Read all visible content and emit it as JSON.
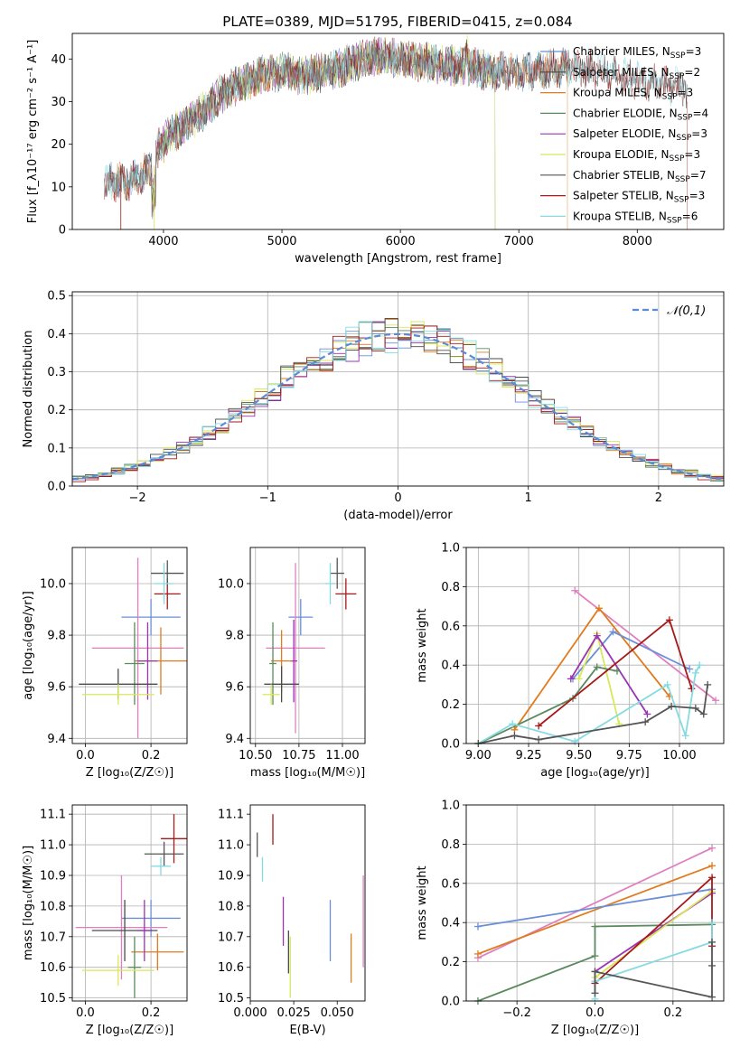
{
  "figure_title": "PLATE=0389, MJD=51795, FIBERID=0415, z=0.084",
  "colors": {
    "Chabrier MILES": "#6b8fd6",
    "Salpeter MILES": "#4a4a4a",
    "Kroupa MILES": "#e07b1f",
    "Chabrier ELODIE": "#5a8a5f",
    "Salpeter ELODIE": "#9b33b5",
    "Kroupa ELODIE": "#d8e85a",
    "Chabrier STELIB": "#555555",
    "Salpeter STELIB": "#a61a1a",
    "Kroupa STELIB": "#86dbe0",
    "extra_pink": "#e07fbf",
    "normal_curve": "#5b8bd4"
  },
  "chart_data": [
    {
      "id": "spectrum",
      "type": "line",
      "xlabel": "wavelength [Angstrom, rest frame]",
      "ylabel": "Flux [f_λ10⁻¹⁷ erg cm⁻² s⁻¹ A⁻¹]",
      "xlim": [
        3230,
        8730
      ],
      "ylim": [
        0,
        46
      ],
      "xticks": [
        4000,
        5000,
        6000,
        7000,
        8000
      ],
      "yticks": [
        0,
        10,
        20,
        30,
        40
      ],
      "grid": false,
      "legend_position": "top-right",
      "series": [
        {
          "name": "Chabrier MILES, N_SSP=3",
          "x_range": [
            3540,
            7410
          ]
        },
        {
          "name": "Salpeter MILES, N_SSP=2",
          "x_range": [
            3540,
            7410
          ]
        },
        {
          "name": "Kroupa MILES, N_SSP=3",
          "x_range": [
            3540,
            7410
          ]
        },
        {
          "name": "Chabrier ELODIE, N_SSP=4",
          "x_range": [
            3900,
            6800
          ]
        },
        {
          "name": "Salpeter ELODIE, N_SSP=3",
          "x_range": [
            3900,
            6800
          ]
        },
        {
          "name": "Kroupa ELODIE, N_SSP=3",
          "x_range": [
            3900,
            6800
          ]
        },
        {
          "name": "Chabrier STELIB, N_SSP=7",
          "x_range": [
            3500,
            8420
          ]
        },
        {
          "name": "Salpeter STELIB, N_SSP=3",
          "x_range": [
            3500,
            8420
          ]
        },
        {
          "name": "Kroupa STELIB, N_SSP=6",
          "x_range": [
            3500,
            8420
          ]
        }
      ],
      "continuum": {
        "x": [
          3500,
          3700,
          3900,
          3950,
          4050,
          4300,
          4500,
          4800,
          5000,
          5200,
          5500,
          5800,
          6000,
          6300,
          6600,
          6800,
          7000,
          7400,
          7700,
          8000,
          8420
        ],
        "y": [
          11,
          11,
          14,
          19,
          22,
          27,
          32,
          36,
          37,
          36,
          38,
          41,
          40,
          39,
          38,
          37,
          37,
          38,
          37,
          35,
          33
        ]
      }
    },
    {
      "id": "residuals",
      "type": "histogram",
      "xlabel": "(data-model)/error",
      "ylabel": "Normed distribution",
      "xlim": [
        -2.5,
        2.5
      ],
      "ylim": [
        0,
        0.51
      ],
      "xticks": [
        -2,
        -1,
        0,
        1,
        2
      ],
      "yticks": [
        0.0,
        0.1,
        0.2,
        0.3,
        0.4,
        0.5
      ],
      "grid": true,
      "legend_position": "top-right",
      "legend": "𝒩(0,1)",
      "bin_width": 0.1
    },
    {
      "id": "age_vs_Z",
      "type": "errorbar",
      "xlabel": "Z [log₁₀(Z/Z☉)]",
      "ylabel": "age  [log₁₀(age/yr)]",
      "xlim": [
        -0.04,
        0.31
      ],
      "ylim": [
        9.38,
        10.14
      ],
      "xticks": [
        0.0,
        0.2
      ],
      "yticks": [
        9.4,
        9.6,
        9.8,
        10.0
      ],
      "grid": true,
      "points": [
        {
          "s": "Salpeter STELIB",
          "x": 0.25,
          "y": 9.96,
          "xe": 0.04,
          "ye": 0.06
        },
        {
          "s": "Chabrier STELIB",
          "x": 0.25,
          "y": 10.04,
          "xe": 0.05,
          "ye": 0.05
        },
        {
          "s": "Kroupa STELIB",
          "x": 0.24,
          "y": 10.0,
          "xe": 0.03,
          "ye": 0.08
        },
        {
          "s": "Chabrier MILES",
          "x": 0.2,
          "y": 9.87,
          "xe": 0.09,
          "ye": 0.07
        },
        {
          "s": "extra_pink",
          "x": 0.16,
          "y": 9.75,
          "xe": 0.14,
          "ye": 0.35
        },
        {
          "s": "Kroupa MILES",
          "x": 0.23,
          "y": 9.7,
          "xe": 0.08,
          "ye": 0.13
        },
        {
          "s": "Salpeter ELODIE",
          "x": 0.19,
          "y": 9.7,
          "xe": 0.03,
          "ye": 0.15
        },
        {
          "s": "Chabrier ELODIE",
          "x": 0.15,
          "y": 9.69,
          "xe": 0.03,
          "ye": 0.16
        },
        {
          "s": "Salpeter MILES",
          "x": 0.1,
          "y": 9.61,
          "xe": 0.12,
          "ye": 0.06
        },
        {
          "s": "Kroupa ELODIE",
          "x": 0.1,
          "y": 9.57,
          "xe": 0.11,
          "ye": 0.04
        }
      ]
    },
    {
      "id": "age_vs_mass",
      "type": "errorbar",
      "xlabel": "mass [log₁₀(M/M☉)]",
      "ylabel": "",
      "xlim": [
        10.47,
        11.13
      ],
      "ylim": [
        9.38,
        10.14
      ],
      "xticks": [
        10.5,
        10.75,
        11.0
      ],
      "yticks": [
        9.4,
        9.6,
        9.8,
        10.0
      ],
      "grid": true,
      "points": [
        {
          "s": "Salpeter STELIB",
          "x": 11.02,
          "y": 9.96,
          "xe": 0.06,
          "ye": 0.06
        },
        {
          "s": "Chabrier STELIB",
          "x": 10.97,
          "y": 10.04,
          "xe": 0.04,
          "ye": 0.06
        },
        {
          "s": "Kroupa STELIB",
          "x": 10.93,
          "y": 10.0,
          "xe": 0.03,
          "ye": 0.08
        },
        {
          "s": "Chabrier MILES",
          "x": 10.76,
          "y": 9.87,
          "xe": 0.07,
          "ye": 0.07
        },
        {
          "s": "extra_pink",
          "x": 10.73,
          "y": 9.75,
          "xe": 0.17,
          "ye": 0.33
        },
        {
          "s": "Salpeter ELODIE",
          "x": 10.72,
          "y": 9.7,
          "xe": 0.02,
          "ye": 0.16
        },
        {
          "s": "Kroupa MILES",
          "x": 10.65,
          "y": 9.7,
          "xe": 0.06,
          "ye": 0.12
        },
        {
          "s": "Chabrier ELODIE",
          "x": 10.6,
          "y": 9.69,
          "xe": 0.02,
          "ye": 0.16
        },
        {
          "s": "Salpeter MILES",
          "x": 10.65,
          "y": 9.61,
          "xe": 0.1,
          "ye": 0.07
        },
        {
          "s": "Kroupa ELODIE",
          "x": 10.59,
          "y": 9.57,
          "xe": 0.05,
          "ye": 0.04
        }
      ]
    },
    {
      "id": "weight_vs_age",
      "type": "line",
      "xlabel": "age  [log₁₀(age/yr)]",
      "ylabel": "mass weight",
      "xlim": [
        8.94,
        10.22
      ],
      "ylim": [
        0,
        1
      ],
      "xticks": [
        9.0,
        9.25,
        9.5,
        9.75,
        10.0
      ],
      "yticks": [
        0.0,
        0.2,
        0.4,
        0.6,
        0.8,
        1.0
      ],
      "grid": true,
      "series": [
        {
          "s": "extra_pink",
          "x": [
            9.48,
            10.18
          ],
          "y": [
            0.78,
            0.22
          ]
        },
        {
          "s": "Kroupa MILES",
          "x": [
            9.18,
            9.6,
            9.95
          ],
          "y": [
            0.07,
            0.69,
            0.24
          ]
        },
        {
          "s": "Chabrier MILES",
          "x": [
            9.47,
            9.67,
            10.05
          ],
          "y": [
            0.33,
            0.57,
            0.38
          ]
        },
        {
          "s": "Kroupa ELODIE",
          "x": [
            9.5,
            9.59,
            9.7
          ],
          "y": [
            0.33,
            0.56,
            0.1
          ]
        },
        {
          "s": "Salpeter ELODIE",
          "x": [
            9.46,
            9.59,
            9.84
          ],
          "y": [
            0.33,
            0.55,
            0.15
          ]
        },
        {
          "s": "Chabrier ELODIE",
          "x": [
            9.0,
            9.47,
            9.59,
            9.69
          ],
          "y": [
            0.0,
            0.23,
            0.39,
            0.37
          ]
        },
        {
          "s": "Salpeter STELIB",
          "x": [
            9.3,
            9.95,
            10.06
          ],
          "y": [
            0.09,
            0.63,
            0.28
          ]
        },
        {
          "s": "Kroupa STELIB",
          "x": [
            9.0,
            9.17,
            9.48,
            9.94,
            10.03,
            10.08,
            10.1
          ],
          "y": [
            0.0,
            0.1,
            0.01,
            0.3,
            0.04,
            0.36,
            0.4
          ]
        },
        {
          "s": "Chabrier STELIB",
          "x": [
            9.0,
            9.18,
            9.3,
            9.83,
            9.96,
            10.08,
            10.12,
            10.14
          ],
          "y": [
            0.0,
            0.04,
            0.02,
            0.11,
            0.19,
            0.18,
            0.15,
            0.3
          ]
        }
      ]
    },
    {
      "id": "mass_vs_Z",
      "type": "errorbar",
      "xlabel": "Z [log₁₀(Z/Z☉)]",
      "ylabel": "mass [log₁₀(M/M☉)]",
      "xlim": [
        -0.04,
        0.31
      ],
      "ylim": [
        10.49,
        11.13
      ],
      "xticks": [
        0.0,
        0.2
      ],
      "yticks": [
        10.5,
        10.6,
        10.7,
        10.8,
        10.9,
        11.0,
        11.1
      ],
      "grid": true,
      "points": [
        {
          "s": "Salpeter STELIB",
          "x": 0.27,
          "y": 11.02,
          "xe": 0.04,
          "ye": 0.08
        },
        {
          "s": "Chabrier STELIB",
          "x": 0.24,
          "y": 10.97,
          "xe": 0.06,
          "ye": 0.04
        },
        {
          "s": "Kroupa STELIB",
          "x": 0.23,
          "y": 10.93,
          "xe": 0.03,
          "ye": 0.03
        },
        {
          "s": "Chabrier MILES",
          "x": 0.2,
          "y": 10.76,
          "xe": 0.09,
          "ye": 0.06
        },
        {
          "s": "extra_pink",
          "x": 0.11,
          "y": 10.73,
          "xe": 0.14,
          "ye": 0.17
        },
        {
          "s": "Salpeter MILES",
          "x": 0.12,
          "y": 10.72,
          "xe": 0.1,
          "ye": 0.1
        },
        {
          "s": "Kroupa MILES",
          "x": 0.22,
          "y": 10.65,
          "xe": 0.08,
          "ye": 0.06
        },
        {
          "s": "Salpeter ELODIE",
          "x": 0.18,
          "y": 10.72,
          "xe": 0.02,
          "ye": 0.1
        },
        {
          "s": "Chabrier ELODIE",
          "x": 0.15,
          "y": 10.6,
          "xe": 0.02,
          "ye": 0.1
        },
        {
          "s": "Kroupa ELODIE",
          "x": 0.1,
          "y": 10.59,
          "xe": 0.11,
          "ye": 0.05
        }
      ]
    },
    {
      "id": "mass_vs_ebv",
      "type": "errorbar",
      "xlabel": "E(B-V)",
      "ylabel": "",
      "xlim": [
        0.0,
        0.066
      ],
      "ylim": [
        10.49,
        11.13
      ],
      "xticks": [
        0.0,
        0.025,
        0.05
      ],
      "xtick_labels": [
        "0.000",
        "0.025",
        "0.050"
      ],
      "yticks": [
        10.5,
        10.6,
        10.7,
        10.8,
        10.9,
        11.0,
        11.1
      ],
      "grid": false,
      "points": [
        {
          "s": "Salpeter STELIB",
          "x": 0.013,
          "y": 11.05,
          "xe": 0,
          "ye": 0.05
        },
        {
          "s": "Chabrier STELIB",
          "x": 0.004,
          "y": 11.0,
          "xe": 0,
          "ye": 0.04
        },
        {
          "s": "Kroupa STELIB",
          "x": 0.007,
          "y": 10.92,
          "xe": 0,
          "ye": 0.04
        },
        {
          "s": "Chabrier MILES",
          "x": 0.046,
          "y": 10.72,
          "xe": 0,
          "ye": 0.1
        },
        {
          "s": "extra_pink",
          "x": 0.065,
          "y": 10.75,
          "xe": 0,
          "ye": 0.15
        },
        {
          "s": "Salpeter ELODIE",
          "x": 0.019,
          "y": 10.75,
          "xe": 0,
          "ye": 0.08
        },
        {
          "s": "Salpeter MILES",
          "x": 0.022,
          "y": 10.65,
          "xe": 0,
          "ye": 0.07
        },
        {
          "s": "Kroupa MILES",
          "x": 0.058,
          "y": 10.63,
          "xe": 0,
          "ye": 0.08
        },
        {
          "s": "Kroupa ELODIE",
          "x": 0.023,
          "y": 10.6,
          "xe": 0,
          "ye": 0.1
        }
      ]
    },
    {
      "id": "weight_vs_Z",
      "type": "line",
      "xlabel": "Z [log₁₀(Z/Z☉)]",
      "ylabel": "mass weight",
      "xlim": [
        -0.33,
        0.33
      ],
      "ylim": [
        0,
        1
      ],
      "xticks": [
        -0.2,
        0.0,
        0.2
      ],
      "yticks": [
        0.0,
        0.2,
        0.4,
        0.6,
        0.8,
        1.0
      ],
      "grid": true,
      "series": [
        {
          "s": "extra_pink",
          "x": [
            -0.3,
            0.3
          ],
          "y": [
            0.22,
            0.78
          ]
        },
        {
          "s": "Kroupa MILES",
          "x": [
            -0.3,
            0.3
          ],
          "y": [
            0.24,
            0.69
          ]
        },
        {
          "s": "Chabrier MILES",
          "x": [
            -0.3,
            0.3
          ],
          "y": [
            0.38,
            0.57
          ]
        },
        {
          "s": "Chabrier ELODIE",
          "x": [
            -0.3,
            0.0,
            0.0,
            0.3
          ],
          "y": [
            0.0,
            0.23,
            0.38,
            0.39
          ]
        },
        {
          "s": "Salpeter ELODIE",
          "x": [
            0.0,
            0.3
          ],
          "y": [
            0.15,
            0.55
          ]
        },
        {
          "s": "Kroupa ELODIE",
          "x": [
            0.0,
            0.3
          ],
          "y": [
            0.12,
            0.56
          ]
        },
        {
          "s": "Salpeter STELIB",
          "x": [
            0.0,
            0.3,
            0.3
          ],
          "y": [
            0.09,
            0.63,
            0.28
          ]
        },
        {
          "s": "Kroupa STELIB",
          "x": [
            0.0,
            0.0,
            0.3,
            0.3
          ],
          "y": [
            0.01,
            0.1,
            0.3,
            0.4
          ]
        },
        {
          "s": "Chabrier STELIB",
          "x": [
            0.0,
            0.0,
            0.3,
            0.3,
            0.3
          ],
          "y": [
            0.04,
            0.15,
            0.02,
            0.18,
            0.3
          ]
        }
      ]
    }
  ]
}
